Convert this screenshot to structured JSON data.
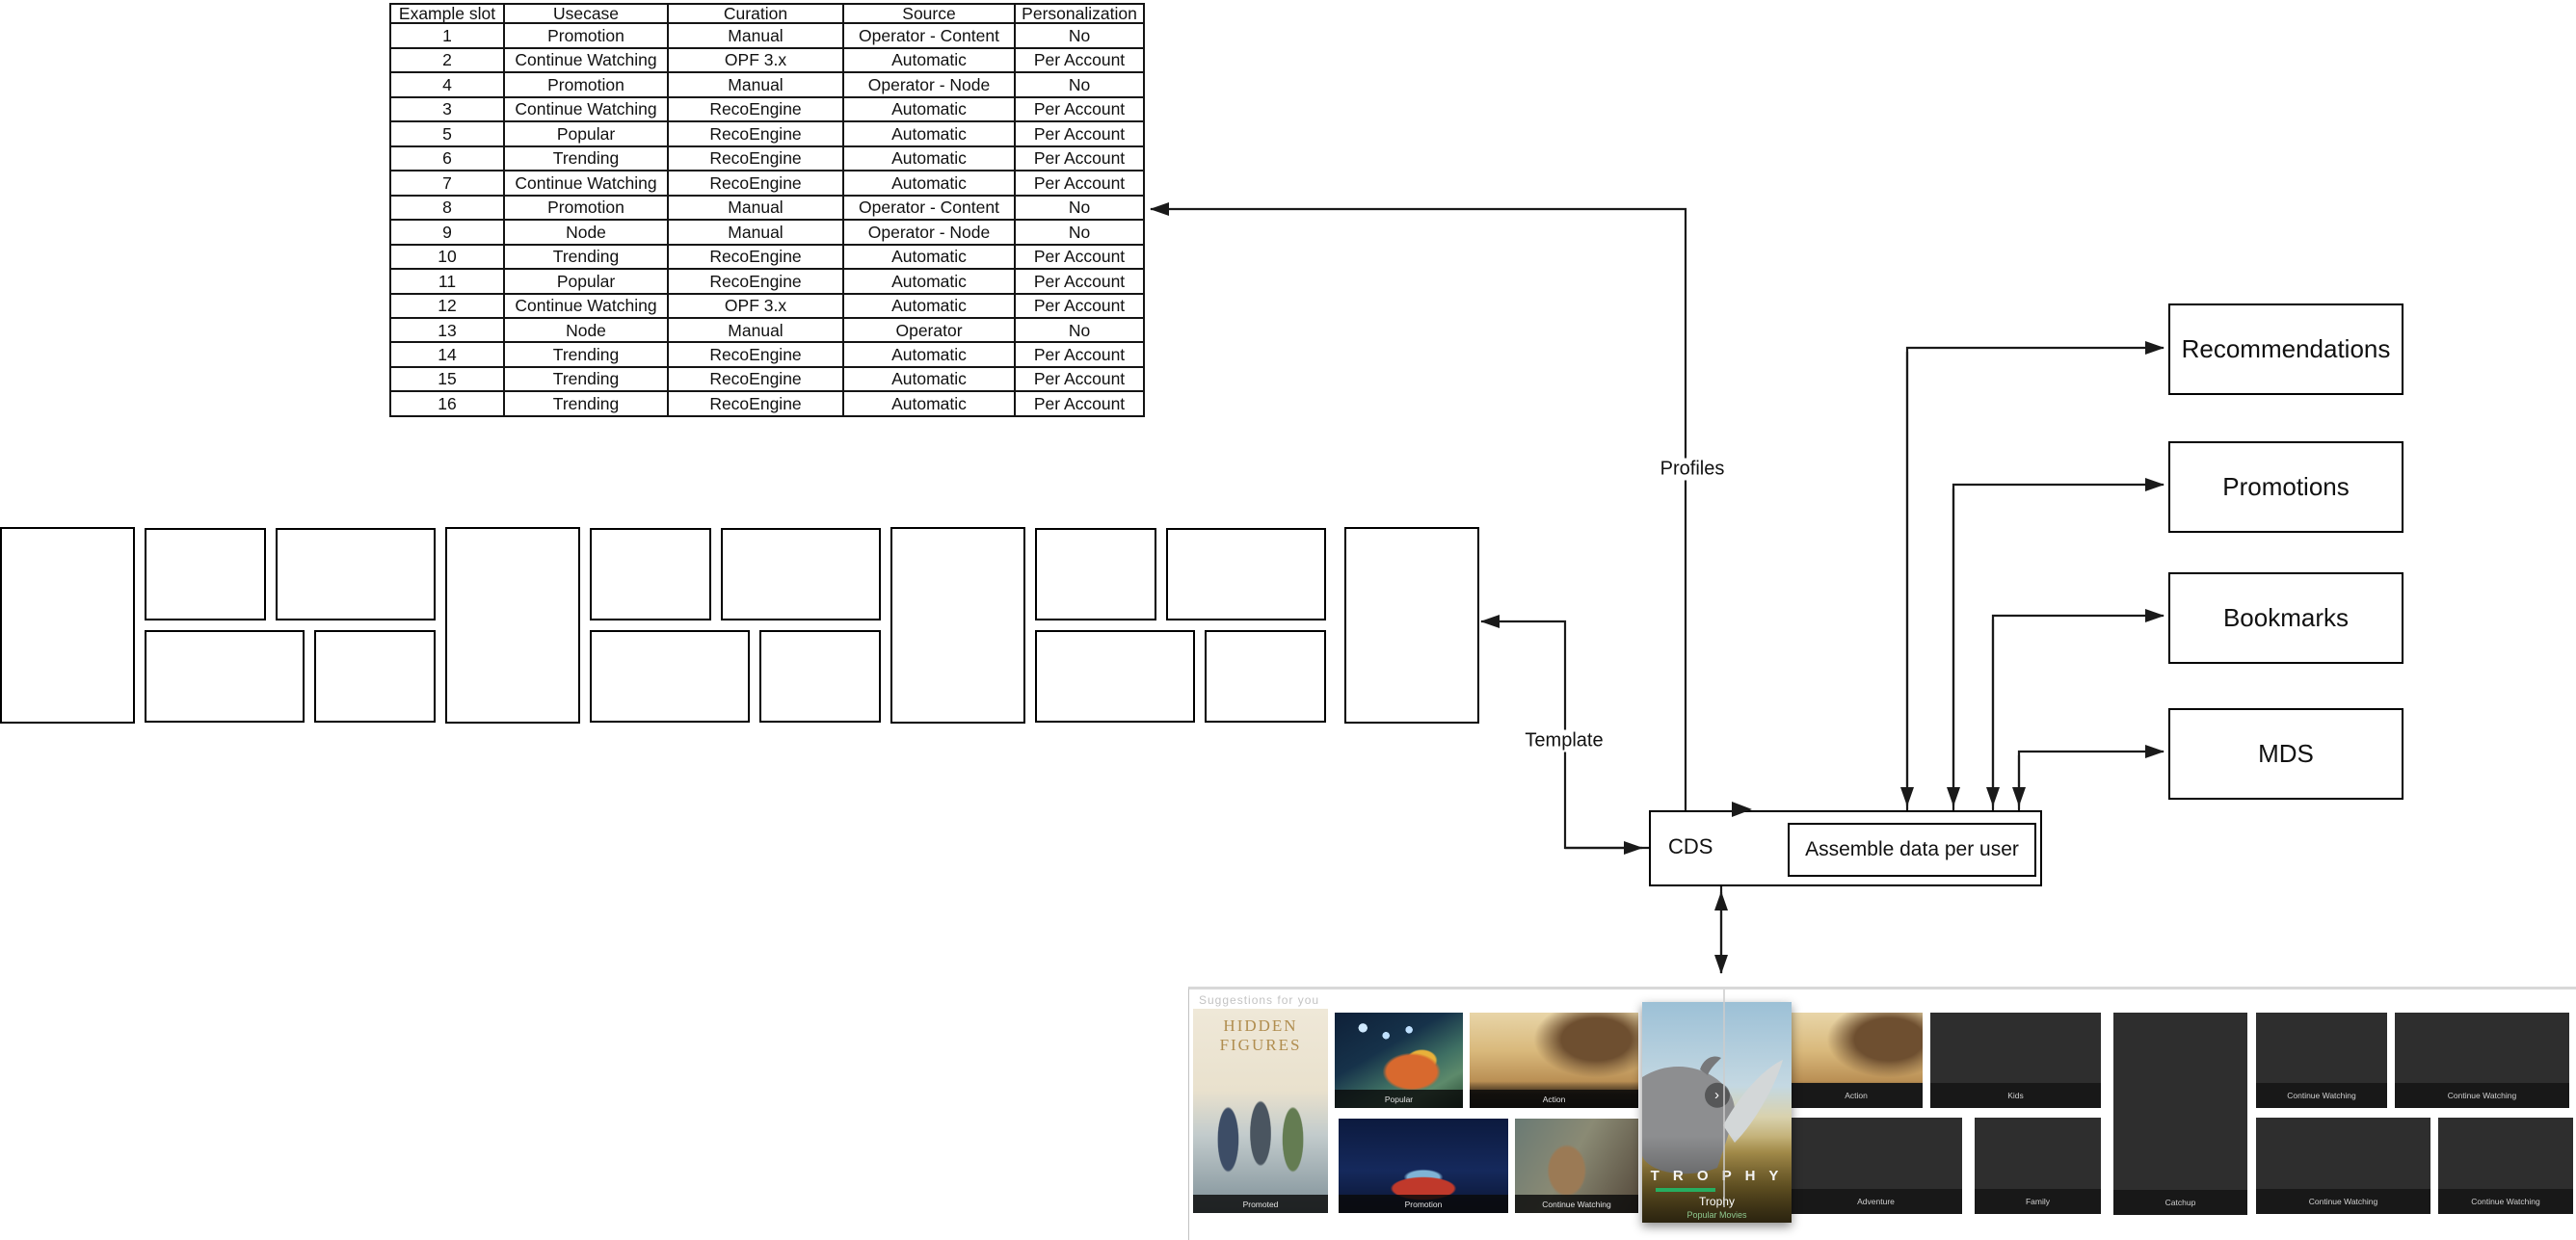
{
  "table": {
    "headers": [
      "Example slot",
      "Usecase",
      "Curation",
      "Source",
      "Personalization"
    ],
    "rows": [
      [
        "1",
        "Promotion",
        "Manual",
        "Operator - Content",
        "No"
      ],
      [
        "2",
        "Continue Watching",
        "OPF 3.x",
        "Automatic",
        "Per Account"
      ],
      [
        "4",
        "Promotion",
        "Manual",
        "Operator - Node",
        "No"
      ],
      [
        "3",
        "Continue Watching",
        "RecoEngine",
        "Automatic",
        "Per Account"
      ],
      [
        "5",
        "Popular",
        "RecoEngine",
        "Automatic",
        "Per Account"
      ],
      [
        "6",
        "Trending",
        "RecoEngine",
        "Automatic",
        "Per Account"
      ],
      [
        "7",
        "Continue Watching",
        "RecoEngine",
        "Automatic",
        "Per Account"
      ],
      [
        "8",
        "Promotion",
        "Manual",
        "Operator - Content",
        "No"
      ],
      [
        "9",
        "Node",
        "Manual",
        "Operator - Node",
        "No"
      ],
      [
        "10",
        "Trending",
        "RecoEngine",
        "Automatic",
        "Per Account"
      ],
      [
        "11",
        "Popular",
        "RecoEngine",
        "Automatic",
        "Per Account"
      ],
      [
        "12",
        "Continue Watching",
        "OPF 3.x",
        "Automatic",
        "Per Account"
      ],
      [
        "13",
        "Node",
        "Manual",
        "Operator",
        "No"
      ],
      [
        "14",
        "Trending",
        "RecoEngine",
        "Automatic",
        "Per Account"
      ],
      [
        "15",
        "Trending",
        "RecoEngine",
        "Automatic",
        "Per Account"
      ],
      [
        "16",
        "Trending",
        "RecoEngine",
        "Automatic",
        "Per Account"
      ]
    ]
  },
  "connectors": {
    "profiles_label": "Profiles",
    "template_label": "Template"
  },
  "cds": {
    "label": "CDS",
    "inner_label": "Assemble data per user"
  },
  "services": [
    "Recommendations",
    "Promotions",
    "Bookmarks",
    "MDS"
  ],
  "strip": {
    "header": "Suggestions for you",
    "hf": {
      "line1": "HIDDEN",
      "line2": "FIGURES"
    },
    "labels": {
      "promoted": "Promoted",
      "popular": "Popular",
      "action": "Action",
      "promotion": "Promotion",
      "continue_watching": "Continue Watching",
      "kids": "Kids",
      "adventure": "Adventure",
      "family": "Family",
      "catchup": "Catchup"
    },
    "trophy": {
      "poster_text": "T R O P H Y",
      "title": "Trophy",
      "subtitle": "Popular Movies",
      "chevron": "›"
    }
  },
  "colors": {
    "line": "#1a1a1a",
    "trophy_green": "#27ae60",
    "trophy_subtitle": "#8fc98f",
    "hf_gold": "#b08d4f"
  }
}
